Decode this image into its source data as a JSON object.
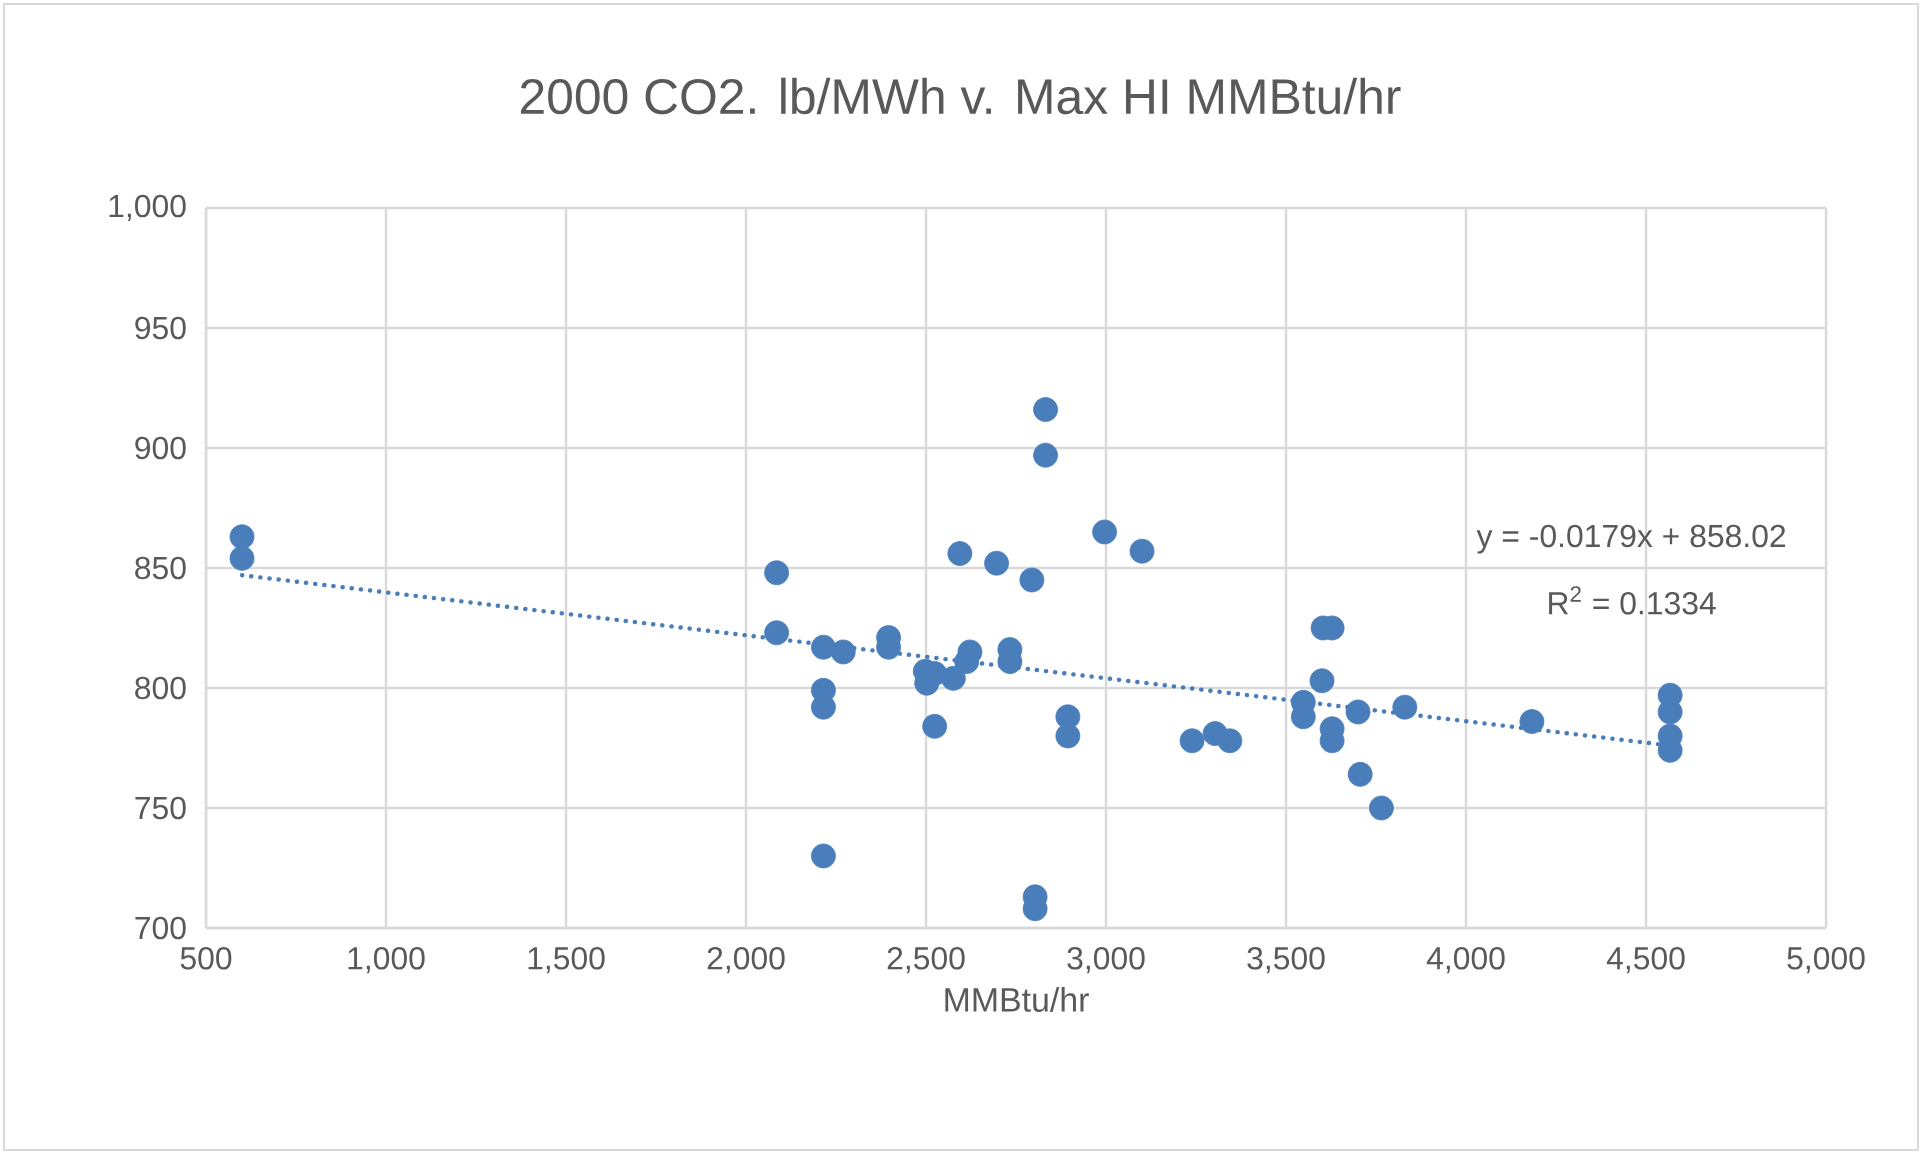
{
  "chart_data": {
    "type": "scatter",
    "title": "2000 CO2. lb/MWh v. Max HI MMBtu/hr",
    "xlabel": "MMBtu/hr",
    "series": [
      {
        "color": "#4a7ebb",
        "marker": "circle",
        "x": [
          600,
          600,
          2832,
          2832,
          2085,
          2594,
          2696,
          2794,
          2996,
          3100,
          2085,
          2215,
          2270,
          2396,
          2396,
          2498,
          2502,
          2524,
          2576,
          2622,
          2613,
          2733,
          2733,
          2215,
          2215,
          2524,
          2894,
          2894,
          3239,
          3303,
          3344,
          2215,
          2803,
          2803,
          3603,
          3628,
          3600,
          3548,
          3548,
          3628,
          3628,
          3700,
          3830,
          3706,
          3765,
          4183,
          4567,
          4567,
          4567,
          4567
        ],
        "values": [
          863,
          854,
          916,
          897,
          848,
          856,
          852,
          845,
          865,
          857,
          823,
          817,
          815,
          821,
          817,
          807,
          802,
          806,
          804,
          815,
          811,
          816,
          811,
          799,
          792,
          784,
          788,
          780,
          778,
          781,
          778,
          730,
          713,
          708,
          825,
          825,
          803,
          794,
          788,
          783,
          778,
          790,
          792,
          764,
          750,
          786,
          797,
          790,
          780,
          774
        ]
      },
      {
        "type": "line",
        "color": "#4a7ebb",
        "line_style": "dotted",
        "marker": "none",
        "x": [
          600,
          4567
        ],
        "values": [
          847,
          776
        ]
      }
    ],
    "xlim": [
      500,
      5000
    ],
    "ylim": [
      700,
      1000
    ],
    "xticks": [
      500,
      {
        "value": 1000,
        "label": "1,000"
      },
      {
        "value": 1500,
        "label": "1,500"
      },
      {
        "value": 2000,
        "label": "2,000"
      },
      {
        "value": 2500,
        "label": "2,500"
      },
      {
        "value": 3000,
        "label": "3,000"
      },
      {
        "value": 3500,
        "label": "3,500"
      },
      {
        "value": 4000,
        "label": "4,000"
      },
      {
        "value": 4500,
        "label": "4,500"
      },
      {
        "value": 5000,
        "label": "5,000"
      }
    ],
    "yticks": [
      700,
      750,
      800,
      850,
      900,
      950,
      {
        "value": 1000,
        "label": "1,000"
      }
    ],
    "grid": true,
    "annotations": [
      "y = -0.0179x + 858.02",
      "R$^{2}$ = 0.1334"
    ]
  }
}
